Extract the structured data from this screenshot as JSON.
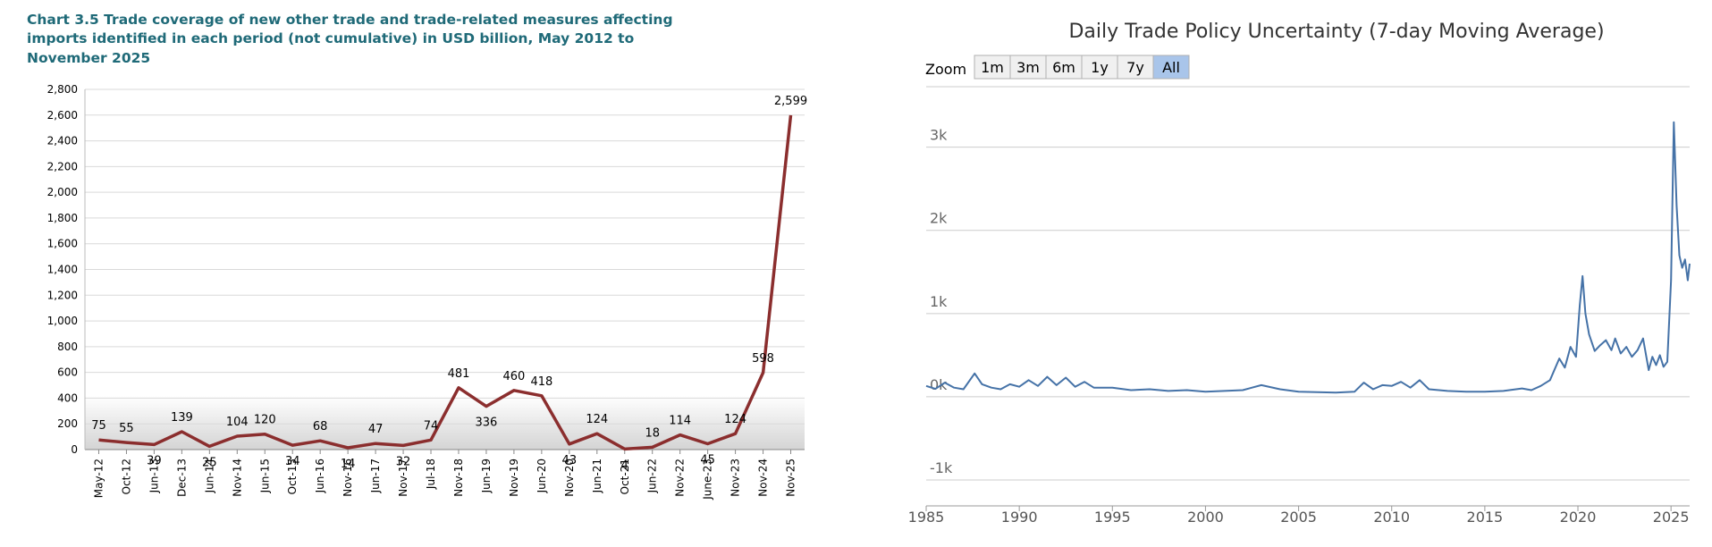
{
  "chart_data": [
    {
      "type": "line",
      "title": "Chart 3.5 Trade coverage of new other trade and trade-related measures affecting imports identified in each period (not cumulative) in USD billion, May 2012 to November 2025",
      "title_lines": [
        "Chart 3.5 Trade coverage of new other trade and trade-related measures affecting",
        "imports identified in each period (not cumulative) in USD billion, May 2012 to",
        "November 2025"
      ],
      "xlabel": "",
      "ylabel": "",
      "ylim": [
        0,
        2800
      ],
      "yticks": [
        "0",
        "200",
        "400",
        "600",
        "800",
        "1,000",
        "1,200",
        "1,400",
        "1,600",
        "1,800",
        "2,000",
        "2,200",
        "2,400",
        "2,600",
        "2,800"
      ],
      "grid": true,
      "categories": [
        "May-12",
        "Oct-12",
        "Jun-13",
        "Dec-13",
        "Jun-14",
        "Nov-14",
        "Jun-15",
        "Oct-15",
        "Jun-16",
        "Nov-16",
        "Jun-17",
        "Nov-17",
        "Jul-18",
        "Nov-18",
        "Jun-19",
        "Nov-19",
        "Jun-20",
        "Nov-20",
        "Jun-21",
        "Oct-21",
        "Jun-22",
        "Nov-22",
        "June-23",
        "Nov-23",
        "Nov-24",
        "Nov-25"
      ],
      "values": [
        75,
        55,
        39,
        139,
        25,
        104,
        120,
        34,
        68,
        14,
        47,
        32,
        74,
        481,
        336,
        460,
        418,
        43,
        124,
        4,
        18,
        114,
        45,
        124,
        598,
        2599
      ],
      "data_labels": [
        "75",
        "55",
        "39",
        "139",
        "25",
        "104",
        "120",
        "34",
        "68",
        "14",
        "47",
        "32",
        "74",
        "481",
        "336",
        "460",
        "418",
        "43",
        "124",
        "4",
        "18",
        "114",
        "45",
        "124",
        "598",
        "2,599"
      ],
      "line_color": "#8b2e2e",
      "title_color": "#1f6a78"
    },
    {
      "type": "line",
      "title": "Daily Trade Policy Uncertainty (7-day Moving Average)",
      "zoom": {
        "label": "Zoom",
        "buttons": [
          "1m",
          "3m",
          "6m",
          "1y",
          "7y",
          "All"
        ],
        "selected": "All"
      },
      "ylim": [
        -1000,
        3000
      ],
      "yticks": [
        "3k",
        "2k",
        "1k",
        "0k",
        "-1k"
      ],
      "ytick_values": [
        3000,
        2000,
        1000,
        0,
        -1000
      ],
      "xlim": [
        1985,
        2026
      ],
      "xticks": [
        "1985",
        "1990",
        "1995",
        "2000",
        "2005",
        "2010",
        "2015",
        "2020",
        "2025"
      ],
      "xtick_values": [
        1985,
        1990,
        1995,
        2000,
        2005,
        2010,
        2015,
        2020,
        2025
      ],
      "grid": true,
      "line_color": "#4572a7",
      "series": [
        {
          "x": [
            1985.0,
            1985.5,
            1986.0,
            1986.5,
            1987.0,
            1987.6,
            1988.0,
            1988.5,
            1989.0,
            1989.5,
            1990.0,
            1990.5,
            1991.0,
            1991.5,
            1992.0,
            1992.5,
            1993.0,
            1993.5,
            1994.0,
            1995.0,
            1996.0,
            1997.0,
            1998.0,
            1999.0,
            2000.0,
            2001.0,
            2002.0,
            2003.0,
            2004.0,
            2005.0,
            2006.0,
            2007.0,
            2008.0,
            2008.5,
            2009.0,
            2009.5,
            2010.0,
            2010.5,
            2011.0,
            2011.5,
            2012.0,
            2013.0,
            2014.0,
            2015.0,
            2016.0,
            2017.0,
            2017.5,
            2018.0,
            2018.5,
            2019.0,
            2019.3,
            2019.6,
            2019.9,
            2020.1,
            2020.25,
            2020.4,
            2020.6,
            2020.9,
            2021.2,
            2021.5,
            2021.8,
            2022.0,
            2022.3,
            2022.6,
            2022.9,
            2023.2,
            2023.5,
            2023.8,
            2024.0,
            2024.2,
            2024.4,
            2024.6,
            2024.8,
            2025.0,
            2025.15,
            2025.3,
            2025.45,
            2025.6,
            2025.75,
            2025.9,
            2026.0
          ],
          "y": [
            130,
            95,
            170,
            110,
            90,
            280,
            150,
            110,
            90,
            150,
            120,
            200,
            130,
            240,
            140,
            230,
            120,
            180,
            110,
            110,
            80,
            90,
            70,
            80,
            60,
            70,
            80,
            140,
            90,
            60,
            55,
            50,
            60,
            170,
            90,
            140,
            130,
            180,
            110,
            200,
            90,
            70,
            60,
            60,
            70,
            100,
            80,
            130,
            200,
            460,
            350,
            600,
            480,
            1100,
            1450,
            1000,
            750,
            550,
            620,
            680,
            560,
            700,
            520,
            600,
            480,
            560,
            700,
            320,
            480,
            380,
            500,
            360,
            420,
            1400,
            3300,
            2300,
            1700,
            1550,
            1650,
            1400,
            1600
          ]
        }
      ]
    }
  ]
}
